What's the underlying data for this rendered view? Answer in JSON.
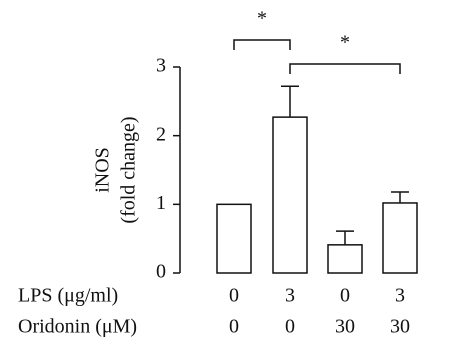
{
  "chart_data": {
    "type": "bar",
    "y_label": "iNOS",
    "y_label_2": "(fold change)",
    "categories": [
      null,
      null,
      null,
      null
    ],
    "values": [
      1,
      2.27,
      0.41,
      1.02
    ],
    "errors": [
      0,
      0.45,
      0.2,
      0.16
    ],
    "color": "#ffffff",
    "ylim": [
      0,
      3
    ],
    "yticks": [
      0,
      1,
      2,
      3
    ],
    "annotations": [
      "*",
      "*"
    ],
    "table": {
      "rows": [
        {
          "label": "LPS (μg/ml)",
          "values": [
            0,
            3,
            0,
            3
          ]
        },
        {
          "label": "Oridonin (μM)",
          "values": [
            0,
            0,
            30,
            30
          ]
        }
      ]
    }
  }
}
